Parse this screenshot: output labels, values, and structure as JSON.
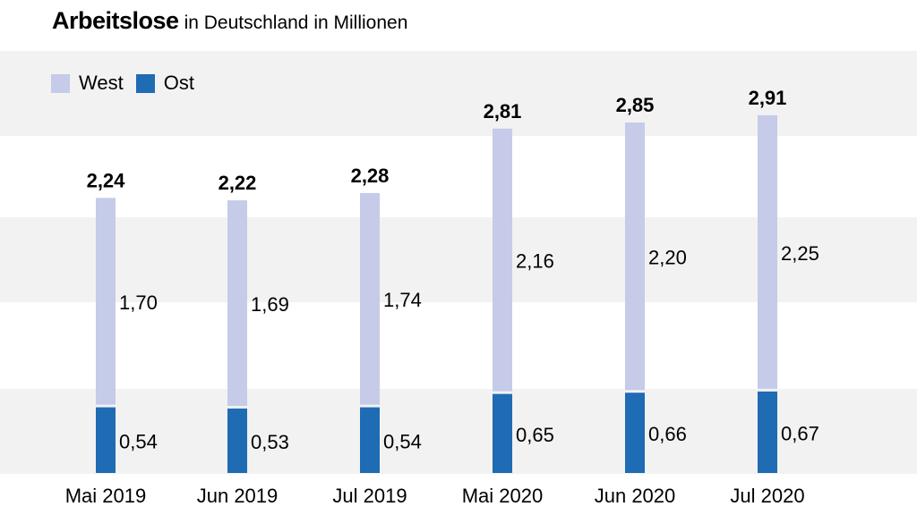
{
  "title": {
    "main": "Arbeitslose",
    "sub": "in Deutschland in Millionen"
  },
  "legend": [
    {
      "label": "West",
      "color": "#c5cbe8"
    },
    {
      "label": "Ost",
      "color": "#1f6bb4"
    }
  ],
  "chart_data": {
    "type": "bar",
    "stacked": true,
    "title": "Arbeitslose in Deutschland in Millionen",
    "categories": [
      "Mai 2019",
      "Jun 2019",
      "Jul 2019",
      "Mai 2020",
      "Jun 2020",
      "Jul 2020"
    ],
    "totals": [
      "2,24",
      "2,22",
      "2,28",
      "2,81",
      "2,85",
      "2,91"
    ],
    "series": [
      {
        "name": "Ost",
        "color": "#1f6bb4",
        "values": [
          0.54,
          0.53,
          0.54,
          0.65,
          0.66,
          0.67
        ],
        "labels": [
          "0,54",
          "0,53",
          "0,54",
          "0,65",
          "0,66",
          "0,67"
        ]
      },
      {
        "name": "West",
        "color": "#c5cbe8",
        "values": [
          1.7,
          1.69,
          1.74,
          2.16,
          2.2,
          2.25
        ],
        "labels": [
          "1,70",
          "1,69",
          "1,74",
          "2,16",
          "2,20",
          "2,25"
        ]
      }
    ],
    "ylim": [
      0,
      3.0
    ],
    "xlabel": "",
    "ylabel": "",
    "legend_position": "top-left"
  }
}
